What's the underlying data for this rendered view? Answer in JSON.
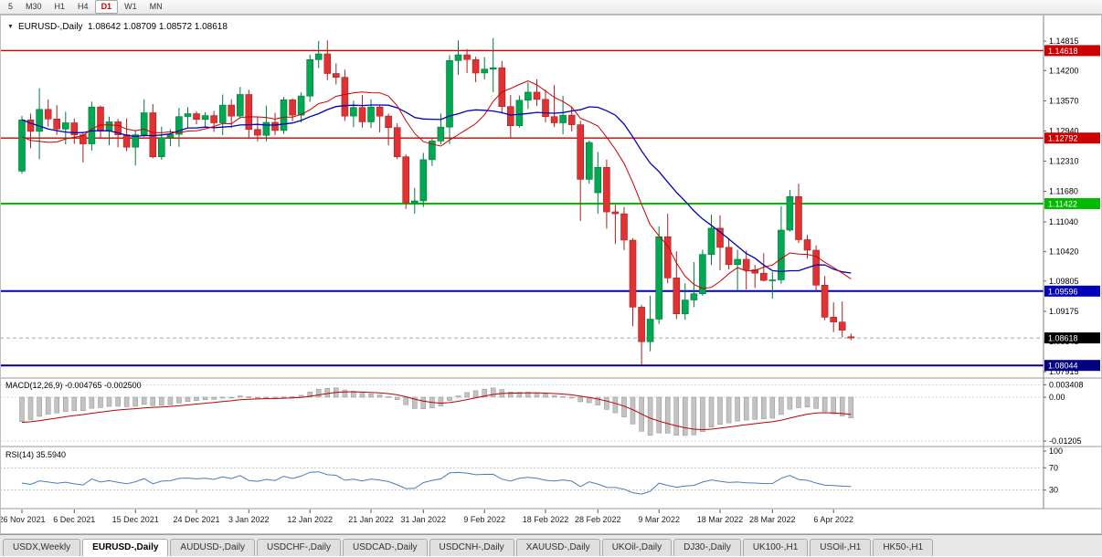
{
  "toolbar": {
    "timeframes": [
      {
        "label": "5",
        "active": false
      },
      {
        "label": "M30",
        "active": false
      },
      {
        "label": "H1",
        "active": false
      },
      {
        "label": "H4",
        "active": false
      },
      {
        "label": "D1",
        "active": true
      },
      {
        "label": "W1",
        "active": false
      },
      {
        "label": "MN",
        "active": false
      }
    ]
  },
  "chart": {
    "header": {
      "collapse_icon": "▼",
      "title": "EURUSD-,Daily",
      "ohlc_text": "1.08642 1.08709 1.08572 1.08618"
    },
    "price_axis_labels": [
      "1.14815",
      "1.14200",
      "1.13570",
      "1.12940",
      "1.12310",
      "1.11680",
      "1.11040",
      "1.10420",
      "1.09805",
      "1.09175",
      "1.08545",
      "1.07915"
    ],
    "levels": [
      {
        "price": 1.14618,
        "label": "1.14618",
        "color": "#cc0000",
        "width": 1.4
      },
      {
        "price": 1.12792,
        "label": "1.12792",
        "color": "#cc0000",
        "width": 1.4
      },
      {
        "price": 1.11422,
        "label": "1.11422",
        "color": "#00bb00",
        "width": 2
      },
      {
        "price": 1.09596,
        "label": "1.09596",
        "color": "#0000bb",
        "width": 2
      },
      {
        "price": 1.08044,
        "label": "1.08044",
        "color": "#000080",
        "width": 2
      }
    ],
    "current_price": {
      "price": 1.08618,
      "label": "1.08618",
      "color": "#000000"
    },
    "colors": {
      "candle_up": "#00a851",
      "candle_up_dark": "#00793a",
      "candle_down": "#e03232",
      "candle_down_dark": "#a82020",
      "ma_fast": "#cc0000",
      "ma_slow": "#0000b8",
      "macd_hist": "#c3c3c3",
      "macd_hist_border": "#8f8f8f",
      "macd_signal": "#c00000",
      "rsi_line": "#4a7eb8"
    }
  },
  "chart_data": {
    "type": "candlestick",
    "symbol": "EURUSD-",
    "timeframe": "Daily",
    "title": "EURUSD-,Daily",
    "x_labels": [
      {
        "i": 0,
        "t": "26 Nov 2021"
      },
      {
        "i": 6,
        "t": "6 Dec 2021"
      },
      {
        "i": 13,
        "t": "15 Dec 2021"
      },
      {
        "i": 20,
        "t": "24 Dec 2021"
      },
      {
        "i": 26,
        "t": "3 Jan 2022"
      },
      {
        "i": 33,
        "t": "12 Jan 2022"
      },
      {
        "i": 40,
        "t": "21 Jan 2022"
      },
      {
        "i": 46,
        "t": "31 Jan 2022"
      },
      {
        "i": 53,
        "t": "9 Feb 2022"
      },
      {
        "i": 60,
        "t": "18 Feb 2022"
      },
      {
        "i": 66,
        "t": "28 Feb 2022"
      },
      {
        "i": 73,
        "t": "9 Mar 2022"
      },
      {
        "i": 80,
        "t": "18 Mar 2022"
      },
      {
        "i": 86,
        "t": "28 Mar 2022"
      },
      {
        "i": 93,
        "t": "6 Apr 2022"
      }
    ],
    "candles": [
      [
        1.121,
        1.1325,
        1.1205,
        1.1317
      ],
      [
        1.1317,
        1.133,
        1.1258,
        1.1293
      ],
      [
        1.1293,
        1.1383,
        1.1235,
        1.1339
      ],
      [
        1.1339,
        1.136,
        1.1303,
        1.1319
      ],
      [
        1.1319,
        1.1348,
        1.1286,
        1.1298
      ],
      [
        1.1298,
        1.1334,
        1.1266,
        1.1311
      ],
      [
        1.1311,
        1.132,
        1.1267,
        1.1286
      ],
      [
        1.1286,
        1.129,
        1.1228,
        1.1267
      ],
      [
        1.1267,
        1.1355,
        1.1253,
        1.1344
      ],
      [
        1.1344,
        1.1347,
        1.128,
        1.1294
      ],
      [
        1.1294,
        1.1324,
        1.1264,
        1.1313
      ],
      [
        1.1313,
        1.1319,
        1.126,
        1.1286
      ],
      [
        1.1286,
        1.132,
        1.1252,
        1.126
      ],
      [
        1.126,
        1.1296,
        1.1222,
        1.1286
      ],
      [
        1.1286,
        1.136,
        1.1281,
        1.1332
      ],
      [
        1.1332,
        1.135,
        1.1237,
        1.124
      ],
      [
        1.124,
        1.1303,
        1.1234,
        1.128
      ],
      [
        1.128,
        1.1298,
        1.1262,
        1.1287
      ],
      [
        1.1287,
        1.1342,
        1.1261,
        1.1324
      ],
      [
        1.1324,
        1.1344,
        1.13,
        1.133
      ],
      [
        1.133,
        1.1335,
        1.1308,
        1.1318
      ],
      [
        1.1318,
        1.1333,
        1.1302,
        1.1326
      ],
      [
        1.1326,
        1.1336,
        1.1292,
        1.1311
      ],
      [
        1.1311,
        1.137,
        1.1285,
        1.1348
      ],
      [
        1.1348,
        1.136,
        1.13,
        1.1325
      ],
      [
        1.1325,
        1.1386,
        1.132,
        1.137
      ],
      [
        1.137,
        1.138,
        1.1279,
        1.1297
      ],
      [
        1.1297,
        1.1324,
        1.1272,
        1.1285
      ],
      [
        1.1285,
        1.1347,
        1.1272,
        1.1312
      ],
      [
        1.1312,
        1.1332,
        1.1285,
        1.1295
      ],
      [
        1.1295,
        1.1365,
        1.1288,
        1.1359
      ],
      [
        1.1359,
        1.1362,
        1.1314,
        1.1327
      ],
      [
        1.1327,
        1.1375,
        1.1312,
        1.1367
      ],
      [
        1.1367,
        1.1453,
        1.1355,
        1.1443
      ],
      [
        1.1443,
        1.1482,
        1.1425,
        1.1455
      ],
      [
        1.1455,
        1.1483,
        1.14,
        1.1414
      ],
      [
        1.1414,
        1.1435,
        1.1391,
        1.1406
      ],
      [
        1.1406,
        1.1422,
        1.1315,
        1.1325
      ],
      [
        1.1325,
        1.1357,
        1.1302,
        1.1343
      ],
      [
        1.1343,
        1.1369,
        1.1301,
        1.1313
      ],
      [
        1.1313,
        1.136,
        1.13,
        1.1344
      ],
      [
        1.1344,
        1.1349,
        1.1291,
        1.1325
      ],
      [
        1.1325,
        1.133,
        1.1264,
        1.1301
      ],
      [
        1.1301,
        1.131,
        1.1235,
        1.124
      ],
      [
        1.124,
        1.1245,
        1.1131,
        1.1144
      ],
      [
        1.1144,
        1.1175,
        1.1121,
        1.1148
      ],
      [
        1.1148,
        1.1248,
        1.1135,
        1.1234
      ],
      [
        1.1234,
        1.1279,
        1.1221,
        1.1273
      ],
      [
        1.1273,
        1.133,
        1.1266,
        1.1302
      ],
      [
        1.1302,
        1.1452,
        1.1267,
        1.1441
      ],
      [
        1.1441,
        1.1483,
        1.1411,
        1.1453
      ],
      [
        1.1453,
        1.1465,
        1.1415,
        1.1443
      ],
      [
        1.1443,
        1.1449,
        1.1396,
        1.1415
      ],
      [
        1.1415,
        1.1448,
        1.1402,
        1.1423
      ],
      [
        1.1423,
        1.1488,
        1.1375,
        1.1426
      ],
      [
        1.1426,
        1.144,
        1.133,
        1.1345
      ],
      [
        1.1345,
        1.1369,
        1.128,
        1.1305
      ],
      [
        1.1305,
        1.1368,
        1.1301,
        1.1358
      ],
      [
        1.1358,
        1.1395,
        1.134,
        1.1375
      ],
      [
        1.1375,
        1.1402,
        1.1346,
        1.136
      ],
      [
        1.136,
        1.138,
        1.1312,
        1.1324
      ],
      [
        1.1324,
        1.139,
        1.1302,
        1.1311
      ],
      [
        1.1311,
        1.1367,
        1.1287,
        1.1327
      ],
      [
        1.1327,
        1.1344,
        1.1293,
        1.1307
      ],
      [
        1.1307,
        1.1315,
        1.1106,
        1.1193
      ],
      [
        1.1193,
        1.1274,
        1.1184,
        1.127
      ],
      [
        1.1165,
        1.125,
        1.1121,
        1.1218
      ],
      [
        1.1218,
        1.1234,
        1.109,
        1.1125
      ],
      [
        1.1125,
        1.114,
        1.1058,
        1.1121
      ],
      [
        1.1121,
        1.1135,
        1.1045,
        1.1066
      ],
      [
        1.1066,
        1.107,
        1.0886,
        1.0926
      ],
      [
        1.0926,
        1.0931,
        1.0806,
        1.0854
      ],
      [
        1.0854,
        1.095,
        1.0834,
        1.0901
      ],
      [
        1.0901,
        1.1095,
        1.0891,
        1.1073
      ],
      [
        1.1073,
        1.1121,
        1.0976,
        1.0987
      ],
      [
        1.0987,
        1.1043,
        1.0901,
        1.0912
      ],
      [
        1.0912,
        1.0976,
        1.09,
        1.0941
      ],
      [
        1.0941,
        1.102,
        1.0926,
        1.0954
      ],
      [
        1.0954,
        1.1046,
        1.095,
        1.1036
      ],
      [
        1.1036,
        1.1119,
        1.1014,
        1.1091
      ],
      [
        1.1091,
        1.1118,
        1.1003,
        1.1051
      ],
      [
        1.1051,
        1.1069,
        1.1005,
        1.1015
      ],
      [
        1.1015,
        1.1046,
        1.0962,
        1.1026
      ],
      [
        1.1026,
        1.1044,
        1.0963,
        1.1004
      ],
      [
        1.1004,
        1.1014,
        1.0966,
        1.0997
      ],
      [
        1.0997,
        1.1039,
        1.098,
        1.0982
      ],
      [
        1.0982,
        1.1,
        1.0944,
        1.0983
      ],
      [
        1.0983,
        1.1137,
        1.0975,
        1.1087
      ],
      [
        1.1087,
        1.1171,
        1.1084,
        1.1157
      ],
      [
        1.1157,
        1.1184,
        1.106,
        1.1067
      ],
      [
        1.1067,
        1.1077,
        1.1027,
        1.1045
      ],
      [
        1.1045,
        1.1055,
        1.096,
        1.0972
      ],
      [
        1.0972,
        1.0991,
        1.0899,
        1.0905
      ],
      [
        1.0905,
        1.0936,
        1.0874,
        1.0895
      ],
      [
        1.0895,
        1.0938,
        1.0863,
        1.0878
      ],
      [
        1.08642,
        1.08709,
        1.08572,
        1.08618
      ]
    ],
    "warmup_closes": [
      1.16,
      1.1585,
      1.157,
      1.156,
      1.1565,
      1.1555,
      1.1548,
      1.154,
      1.152,
      1.148,
      1.1452,
      1.144,
      1.1456,
      1.1441,
      1.1372,
      1.1368,
      1.1315,
      1.1262,
      1.127,
      1.1288,
      1.132,
      1.1368,
      1.136,
      1.134,
      1.129,
      1.1246,
      1.1252,
      1.1236,
      1.1202,
      1.1208
    ],
    "indicators": {
      "ma_fast": {
        "type": "sma",
        "period": 10
      },
      "ma_slow": {
        "type": "sma",
        "period": 20
      },
      "macd": {
        "label": "MACD(12,26,9) -0.004765 -0.002500",
        "params": [
          12,
          26,
          9
        ],
        "axis_labels": [
          {
            "v": 0.003408,
            "text": "0.003408"
          },
          {
            "v": 0.0,
            "text": "0.00"
          },
          {
            "v": -0.01205,
            "text": "-0.01205"
          }
        ]
      },
      "rsi": {
        "label": "RSI(14) 35.5940",
        "period": 14,
        "levels": [
          70,
          30
        ],
        "axis_labels": [
          {
            "v": 100,
            "text": "100"
          },
          {
            "v": 70,
            "text": "70"
          },
          {
            "v": 30,
            "text": "30"
          }
        ]
      }
    }
  },
  "tabs": [
    {
      "label": "USDX,Weekly",
      "active": false
    },
    {
      "label": "EURUSD-,Daily",
      "active": true
    },
    {
      "label": "AUDUSD-,Daily",
      "active": false
    },
    {
      "label": "USDCHF-,Daily",
      "active": false
    },
    {
      "label": "USDCAD-,Daily",
      "active": false
    },
    {
      "label": "USDCNH-,Daily",
      "active": false
    },
    {
      "label": "XAUUSD-,Daily",
      "active": false
    },
    {
      "label": "UKOil-,Daily",
      "active": false
    },
    {
      "label": "DJ30-,Daily",
      "active": false
    },
    {
      "label": "UK100-,H1",
      "active": false
    },
    {
      "label": "USOil-,H1",
      "active": false
    },
    {
      "label": "HK50-,H1",
      "active": false
    }
  ]
}
